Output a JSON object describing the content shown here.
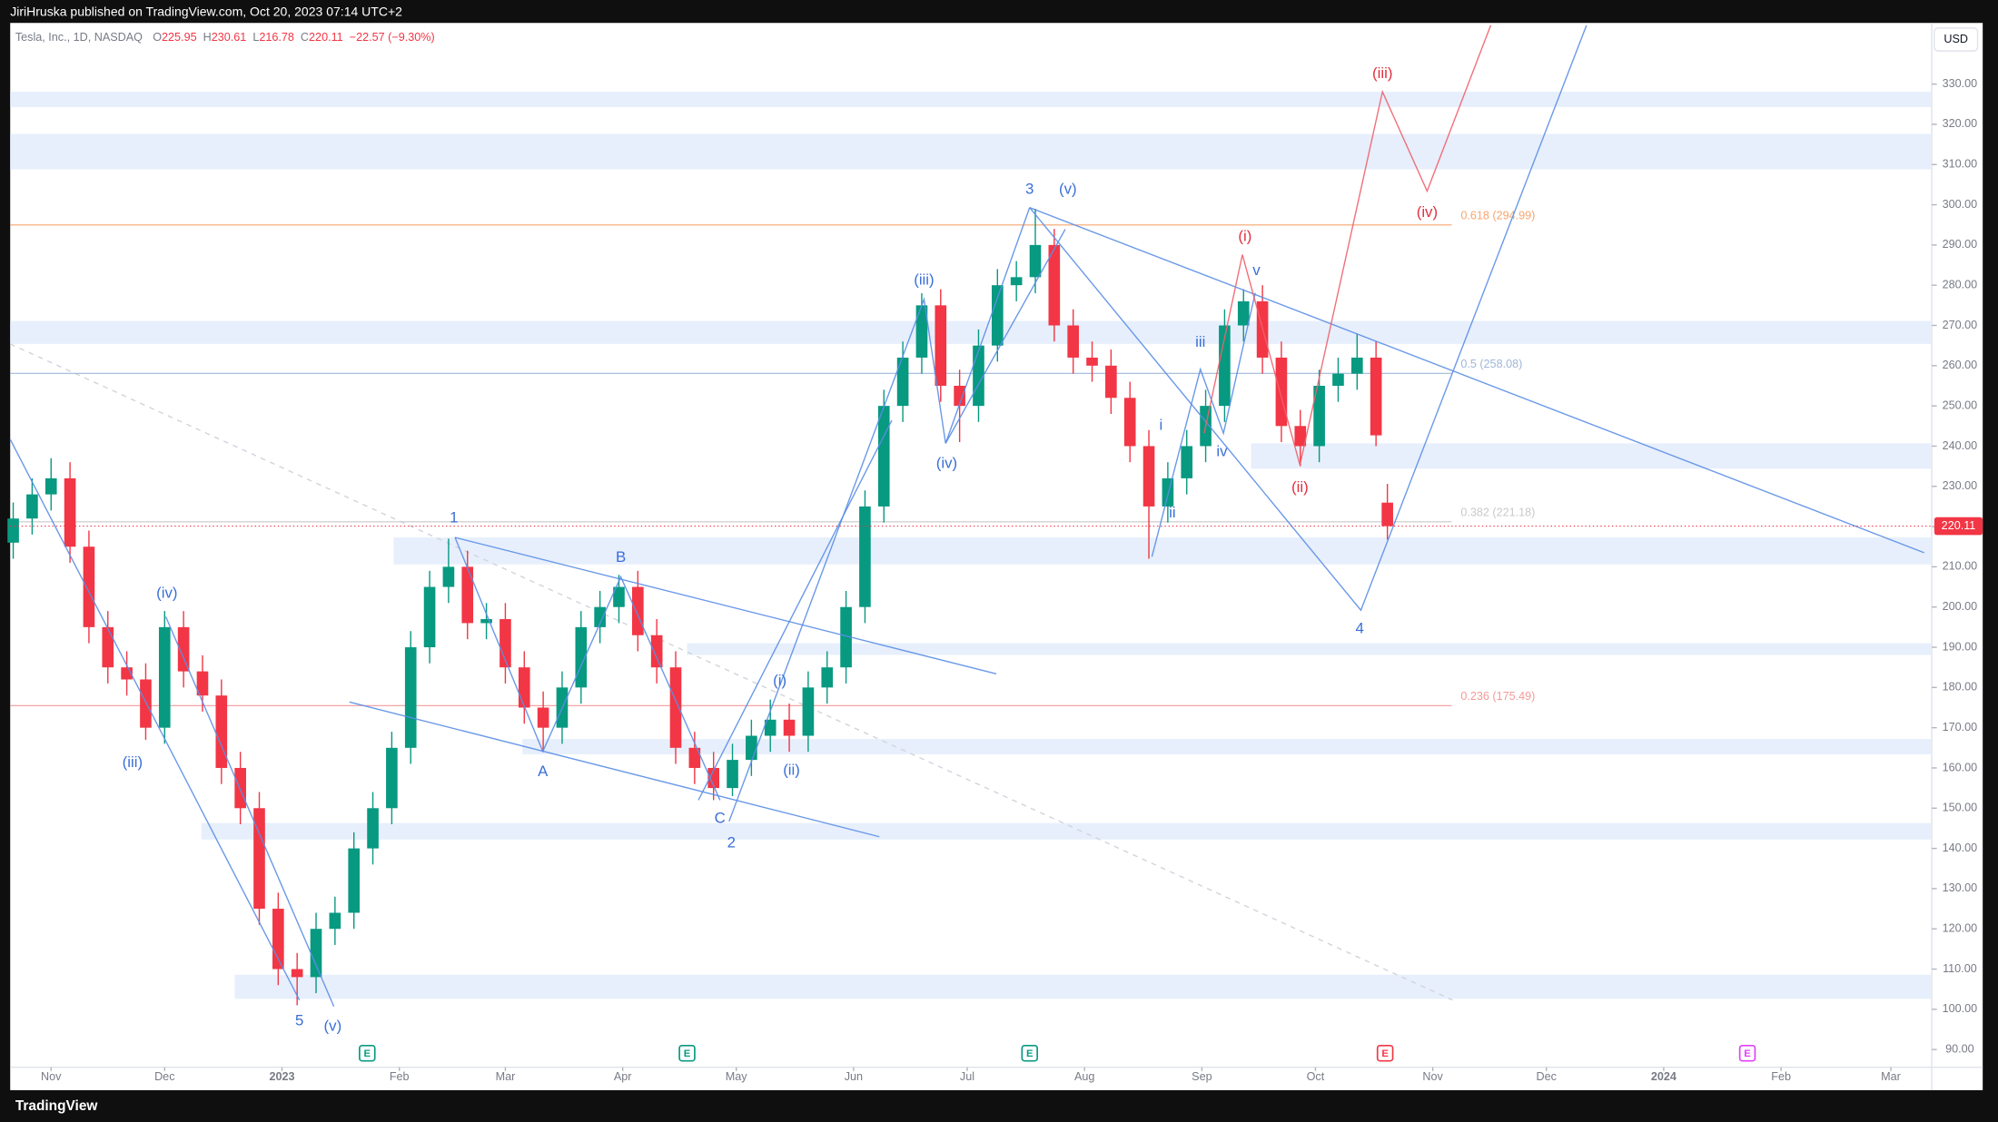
{
  "header": {
    "publisher": "JiriHruska published on TradingView.com, Oct 20, 2023 07:14 UTC+2",
    "brand": "TradingView"
  },
  "chart_data": {
    "type": "candlestick",
    "symbol": "Tesla, Inc., 1D, NASDAQ",
    "ohlc_labels": [
      "O",
      "H",
      "L",
      "C"
    ],
    "change_label": "−22.57 (−9.30%)",
    "currency": "USD",
    "up_color": "#089981",
    "down_color": "#f23645",
    "xlim": [
      -10.8,
      496.8
    ],
    "ylim": [
      85.6,
      345.2
    ],
    "xticks": [
      {
        "value": 0,
        "label": "Nov"
      },
      {
        "value": 30,
        "label": "Dec"
      },
      {
        "value": 61,
        "label": "2023"
      },
      {
        "value": 92,
        "label": "Feb"
      },
      {
        "value": 120,
        "label": "Mar"
      },
      {
        "value": 151,
        "label": "Apr"
      },
      {
        "value": 181,
        "label": "May"
      },
      {
        "value": 212,
        "label": "Jun"
      },
      {
        "value": 242,
        "label": "Jul"
      },
      {
        "value": 273,
        "label": "Aug"
      },
      {
        "value": 304,
        "label": "Sep"
      },
      {
        "value": 334,
        "label": "Oct"
      },
      {
        "value": 365,
        "label": "Nov"
      },
      {
        "value": 395,
        "label": "Dec"
      },
      {
        "value": 426,
        "label": "2024"
      },
      {
        "value": 457,
        "label": "Feb"
      },
      {
        "value": 486,
        "label": "Mar"
      }
    ],
    "yticks": [
      {
        "value": 90,
        "label": "90.00"
      },
      {
        "value": 100,
        "label": "100.00"
      },
      {
        "value": 110,
        "label": "110.00"
      },
      {
        "value": 120,
        "label": "120.00"
      },
      {
        "value": 130,
        "label": "130.00"
      },
      {
        "value": 140,
        "label": "140.00"
      },
      {
        "value": 150,
        "label": "150.00"
      },
      {
        "value": 160,
        "label": "160.00"
      },
      {
        "value": 170,
        "label": "170.00"
      },
      {
        "value": 180,
        "label": "180.00"
      },
      {
        "value": 190,
        "label": "190.00"
      },
      {
        "value": 200,
        "label": "200.00"
      },
      {
        "value": 210,
        "label": "210.00"
      },
      {
        "value": 220,
        "label": "220.00"
      },
      {
        "value": 230,
        "label": "230.00"
      },
      {
        "value": 240,
        "label": "240.00"
      },
      {
        "value": 250,
        "label": "250.00"
      },
      {
        "value": 260,
        "label": "260.00"
      },
      {
        "value": 270,
        "label": "270.00"
      },
      {
        "value": 280,
        "label": "280.00"
      },
      {
        "value": 290,
        "label": "290.00"
      },
      {
        "value": 300,
        "label": "300.00"
      },
      {
        "value": 310,
        "label": "310.00"
      },
      {
        "value": 320,
        "label": "320.00"
      },
      {
        "value": 330,
        "label": "330.00"
      }
    ],
    "candles": {
      "x": [
        -10,
        -5,
        0,
        5,
        10,
        15,
        20,
        25,
        30,
        35,
        40,
        45,
        50,
        55,
        60,
        65,
        70,
        75,
        80,
        85,
        90,
        95,
        100,
        105,
        110,
        115,
        120,
        125,
        130,
        135,
        140,
        145,
        150,
        155,
        160,
        165,
        170,
        175,
        180,
        185,
        190,
        195,
        200,
        205,
        210,
        215,
        220,
        225,
        230,
        235,
        240,
        245,
        250,
        255,
        260,
        265,
        270,
        275,
        280,
        285,
        290,
        295,
        300,
        305,
        310,
        315,
        320,
        325,
        330,
        335,
        340,
        345,
        350,
        353
      ],
      "open": [
        216,
        222,
        228,
        232,
        215,
        195,
        185,
        182,
        170,
        195,
        184,
        178,
        160,
        150,
        125,
        110,
        108,
        120,
        124,
        140,
        150,
        165,
        190,
        205,
        210,
        196,
        197,
        185,
        175,
        170,
        180,
        195,
        200,
        205,
        193,
        185,
        165,
        160,
        155,
        162,
        168,
        172,
        168,
        180,
        185,
        200,
        225,
        250,
        262,
        275,
        255,
        250,
        265,
        280,
        282,
        290,
        270,
        262,
        260,
        252,
        240,
        225,
        232,
        240,
        250,
        270,
        276,
        262,
        245,
        240,
        255,
        258,
        262,
        225.95
      ],
      "high": [
        226,
        232,
        237,
        236,
        219,
        199,
        189,
        186,
        199,
        199,
        188,
        182,
        164,
        154,
        129,
        114,
        124,
        128,
        144,
        154,
        169,
        194,
        209,
        217,
        214,
        201,
        201,
        189,
        179,
        184,
        199,
        204,
        208,
        209,
        197,
        189,
        169,
        164,
        166,
        172,
        177,
        176,
        184,
        189,
        204,
        229,
        254,
        266,
        278,
        279,
        259,
        269,
        284,
        286,
        299,
        294,
        274,
        266,
        264,
        256,
        244,
        236,
        244,
        254,
        274,
        279,
        280,
        266,
        249,
        259,
        262,
        268,
        266,
        230.61
      ],
      "low": [
        212,
        218,
        224,
        211,
        191,
        181,
        178,
        167,
        166,
        180,
        174,
        156,
        146,
        121,
        106,
        101,
        104,
        116,
        120,
        136,
        146,
        161,
        186,
        201,
        192,
        192,
        181,
        171,
        164,
        166,
        176,
        191,
        196,
        189,
        181,
        161,
        156,
        152,
        153,
        158,
        164,
        164,
        164,
        176,
        181,
        196,
        221,
        246,
        258,
        251,
        241,
        246,
        261,
        276,
        278,
        266,
        258,
        256,
        248,
        236,
        212,
        221,
        228,
        236,
        246,
        266,
        258,
        241,
        235,
        236,
        251,
        254,
        240,
        216.78
      ],
      "close": [
        222,
        228,
        232,
        215,
        195,
        185,
        182,
        170,
        195,
        184,
        178,
        160,
        150,
        125,
        110,
        108,
        120,
        124,
        140,
        150,
        165,
        190,
        205,
        210,
        196,
        197,
        185,
        175,
        170,
        180,
        195,
        200,
        205,
        193,
        185,
        165,
        160,
        155,
        162,
        168,
        172,
        168,
        180,
        185,
        200,
        225,
        250,
        262,
        275,
        255,
        250,
        265,
        280,
        282,
        290,
        270,
        262,
        260,
        252,
        240,
        225,
        232,
        240,
        250,
        270,
        276,
        262,
        245,
        240,
        255,
        258,
        262,
        242.68,
        220.11
      ]
    },
    "zones": [
      {
        "from": 324.3,
        "to": 328.1,
        "start": -10.8
      },
      {
        "from": 308.8,
        "to": 317.6,
        "start": -10.8
      },
      {
        "from": 265.4,
        "to": 271.1,
        "start": -10.8
      },
      {
        "from": 234.4,
        "to": 240.7,
        "start": 317
      },
      {
        "from": 210.6,
        "to": 217.3,
        "start": 90.5
      },
      {
        "from": 188.1,
        "to": 191.0,
        "start": 168
      },
      {
        "from": 163.4,
        "to": 167.2,
        "start": 124.5
      },
      {
        "from": 142.2,
        "to": 146.3,
        "start": 39.7
      },
      {
        "from": 102.6,
        "to": 108.6,
        "start": 48.5
      }
    ],
    "fib_levels": [
      {
        "value": 294.99,
        "label": "0.618 (294.99)",
        "color": "#f7a56e"
      },
      {
        "value": 258.08,
        "label": "0.5 (258.08)",
        "color": "#9fb6d8"
      },
      {
        "value": 221.18,
        "label": "0.382 (221.18)",
        "color": "#c9c9c9"
      },
      {
        "value": 175.49,
        "label": "0.236 (175.49)",
        "color": "#f49a9a"
      }
    ],
    "fib_end": 370,
    "wave_lines": [
      {
        "color": "#5b8ee6",
        "x": [
          -10.8,
          65.6
        ],
        "y": [
          241.7,
          102.3
        ]
      },
      {
        "color": "#5b8ee6",
        "x": [
          30.3,
          74.7
        ],
        "y": [
          197.6,
          100.7
        ]
      },
      {
        "color": "#5b8ee6",
        "x": [
          106.7,
          249.7
        ],
        "y": [
          217.3,
          183.4
        ]
      },
      {
        "color": "#5b8ee6",
        "x": [
          78.8,
          218.8
        ],
        "y": [
          176.4,
          142.9
        ]
      },
      {
        "color": "#5b8ee6",
        "x": [
          106.7,
          129.9,
          150.5,
          176.7
        ],
        "y": [
          217.3,
          164.1,
          207.5,
          152.0
        ]
      },
      {
        "color": "#5b8ee6",
        "x": [
          179.1,
          230.6,
          236.3,
          258.5
        ],
        "y": [
          146.7,
          276.5,
          240.7,
          299.3
        ]
      },
      {
        "color": "#5b8ee6",
        "x": [
          171.0,
          222.1
        ],
        "y": [
          152.0,
          246.4
        ]
      },
      {
        "color": "#5b8ee6",
        "x": [
          236.3,
          267.9
        ],
        "y": [
          240.7,
          293.9
        ]
      },
      {
        "color": "#5b8ee6",
        "x": [
          258.5,
          346.0,
          405.6
        ],
        "y": [
          299.3,
          199.2,
          344.6
        ]
      },
      {
        "color": "#5b8ee6",
        "x": [
          258.5,
          494.8
        ],
        "y": [
          299.3,
          213.5
        ]
      },
      {
        "color": "#5b8ee6",
        "x": [
          290.8,
          303.6,
          309.7,
          318.1
        ],
        "y": [
          212.5,
          259.1,
          243.2,
          278.1
        ]
      },
      {
        "color": "#f0616d",
        "x": [
          304.6,
          314.7,
          329.9,
          351.7,
          363.5,
          380.3
        ],
        "y": [
          243.2,
          287.6,
          235.3,
          328.1,
          303.4,
          344.6
        ]
      }
    ],
    "guide_line": {
      "x": [
        -10.8,
        370.2
      ],
      "y": [
        265.4,
        102.3
      ]
    },
    "wave_labels": [
      {
        "text": "5",
        "x": 65.6,
        "y": 97.0,
        "color": "#3a6fd8"
      },
      {
        "text": "(v)",
        "x": 74.4,
        "y": 95.7,
        "color": "#3a6fd8"
      },
      {
        "text": "(iii)",
        "x": 21.5,
        "y": 161.2,
        "color": "#3a6fd8"
      },
      {
        "text": "(iv)",
        "x": 30.6,
        "y": 203.3,
        "color": "#3a6fd8"
      },
      {
        "text": "1",
        "x": 106.4,
        "y": 222.0,
        "color": "#3a6fd8"
      },
      {
        "text": "A",
        "x": 129.9,
        "y": 159.0,
        "color": "#3a6fd8"
      },
      {
        "text": "B",
        "x": 150.5,
        "y": 212.2,
        "color": "#3a6fd8"
      },
      {
        "text": "C",
        "x": 176.7,
        "y": 147.3,
        "color": "#3a6fd8"
      },
      {
        "text": "2",
        "x": 179.7,
        "y": 141.3,
        "color": "#3a6fd8"
      },
      {
        "text": "(i)",
        "x": 192.5,
        "y": 181.5,
        "color": "#3a6fd8"
      },
      {
        "text": "(ii)",
        "x": 195.6,
        "y": 159.3,
        "color": "#3a6fd8"
      },
      {
        "text": "(iii)",
        "x": 230.6,
        "y": 281.2,
        "color": "#3a6fd8"
      },
      {
        "text": "(iv)",
        "x": 236.6,
        "y": 235.6,
        "color": "#3a6fd8"
      },
      {
        "text": "3",
        "x": 258.5,
        "y": 303.7,
        "color": "#3a6fd8"
      },
      {
        "text": "(v)",
        "x": 268.6,
        "y": 303.7,
        "color": "#3a6fd8"
      },
      {
        "text": "i",
        "x": 293.2,
        "y": 245.1,
        "color": "#3a6fd8"
      },
      {
        "text": "ii",
        "x": 296.2,
        "y": 223.3,
        "color": "#3a6fd8"
      },
      {
        "text": "iii",
        "x": 303.6,
        "y": 265.7,
        "color": "#3a6fd8"
      },
      {
        "text": "iv",
        "x": 309.3,
        "y": 238.5,
        "color": "#3a6fd8"
      },
      {
        "text": "v",
        "x": 318.4,
        "y": 283.5,
        "color": "#3a6fd8"
      },
      {
        "text": "4",
        "x": 345.7,
        "y": 194.5,
        "color": "#3a6fd8"
      },
      {
        "text": "(i)",
        "x": 315.4,
        "y": 292.0,
        "color": "#e0303f"
      },
      {
        "text": "(ii)",
        "x": 329.9,
        "y": 229.6,
        "color": "#e0303f"
      },
      {
        "text": "(iii)",
        "x": 351.7,
        "y": 332.5,
        "color": "#e0303f"
      },
      {
        "text": "(iv)",
        "x": 363.5,
        "y": 298.0,
        "color": "#e0303f"
      }
    ],
    "events": [
      {
        "x": 83.5,
        "label": "E",
        "color": "#089981"
      },
      {
        "x": 168,
        "label": "E",
        "color": "#089981"
      },
      {
        "x": 258.5,
        "label": "E",
        "color": "#089981"
      },
      {
        "x": 352.4,
        "label": "E",
        "color": "#f23645"
      },
      {
        "x": 448.1,
        "label": "E",
        "color": "#e040fb"
      }
    ]
  }
}
